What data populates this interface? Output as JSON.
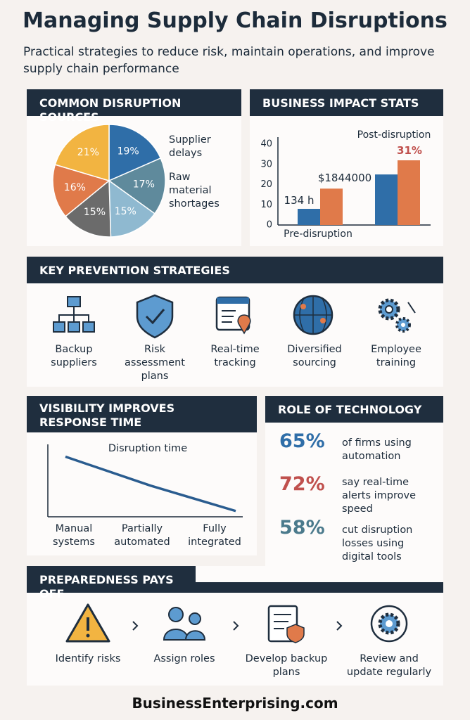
{
  "header": {
    "title": "Managing Supply Chain Disruptions",
    "subtitle": "Practical strategies to reduce risk, maintain operations, and improve supply chain performance"
  },
  "chart_data": [
    {
      "type": "pie",
      "title": "COMMON DISRUPTION SOURCES",
      "categories": [
        "Supplier delays",
        "Raw material shortages",
        null,
        null,
        null,
        null
      ],
      "values": [
        19,
        17,
        15,
        15,
        16,
        21
      ],
      "value_labels": [
        "19%",
        "17%",
        "15%",
        "15%",
        "16%",
        "21%"
      ],
      "colors": [
        "#2f6ea8",
        "#5f8a9c",
        "#8fb9d0",
        "#6b6b6b",
        "#e07a4a",
        "#f2b441"
      ]
    },
    {
      "type": "bar",
      "title": "BUSINESS IMPACT STATS",
      "categories": [
        "Pre-disruption",
        "Post-disruption"
      ],
      "series": [
        {
          "color": "#2f6ea8",
          "values": [
            8,
            25
          ]
        },
        {
          "color": "#e07a4a",
          "values": [
            18,
            32
          ]
        }
      ],
      "annotations": [
        "134 h",
        "$1844000",
        "31%"
      ],
      "ylim": [
        0,
        40
      ],
      "yticks": [
        0,
        10,
        20,
        30,
        40
      ],
      "grid": false
    },
    {
      "type": "line",
      "title": "VISIBILITY IMPROVES RESPONSE TIME",
      "annotation": "Disruption time",
      "categories": [
        "Manual systems",
        "Partially automated",
        "Fully integrated"
      ],
      "values": [
        83,
        43,
        8
      ],
      "color": "#2a5c8f",
      "ylim": [
        0,
        100
      ]
    }
  ],
  "strategies": {
    "title": "KEY PREVENTION STRATEGIES",
    "items": [
      "Backup suppliers",
      "Risk assessment plans",
      "Real-time tracking",
      "Diversified sourcing",
      "Employee training"
    ]
  },
  "technology": {
    "title": "ROLE OF TECHNOLOGY",
    "stats": [
      {
        "value": "65%",
        "text": "of firms using automation"
      },
      {
        "value": "72%",
        "text": "say real-time alerts improve speed"
      },
      {
        "value": "58%",
        "text": "cut disruption losses using digital tools"
      }
    ]
  },
  "preparedness": {
    "title": "PREPAREDNESS PAYS OFF",
    "steps": [
      "Identify risks",
      "Assign roles",
      "Develop backup plans",
      "Review and update regularly"
    ]
  },
  "footer": "BusinessEnterprising.com"
}
